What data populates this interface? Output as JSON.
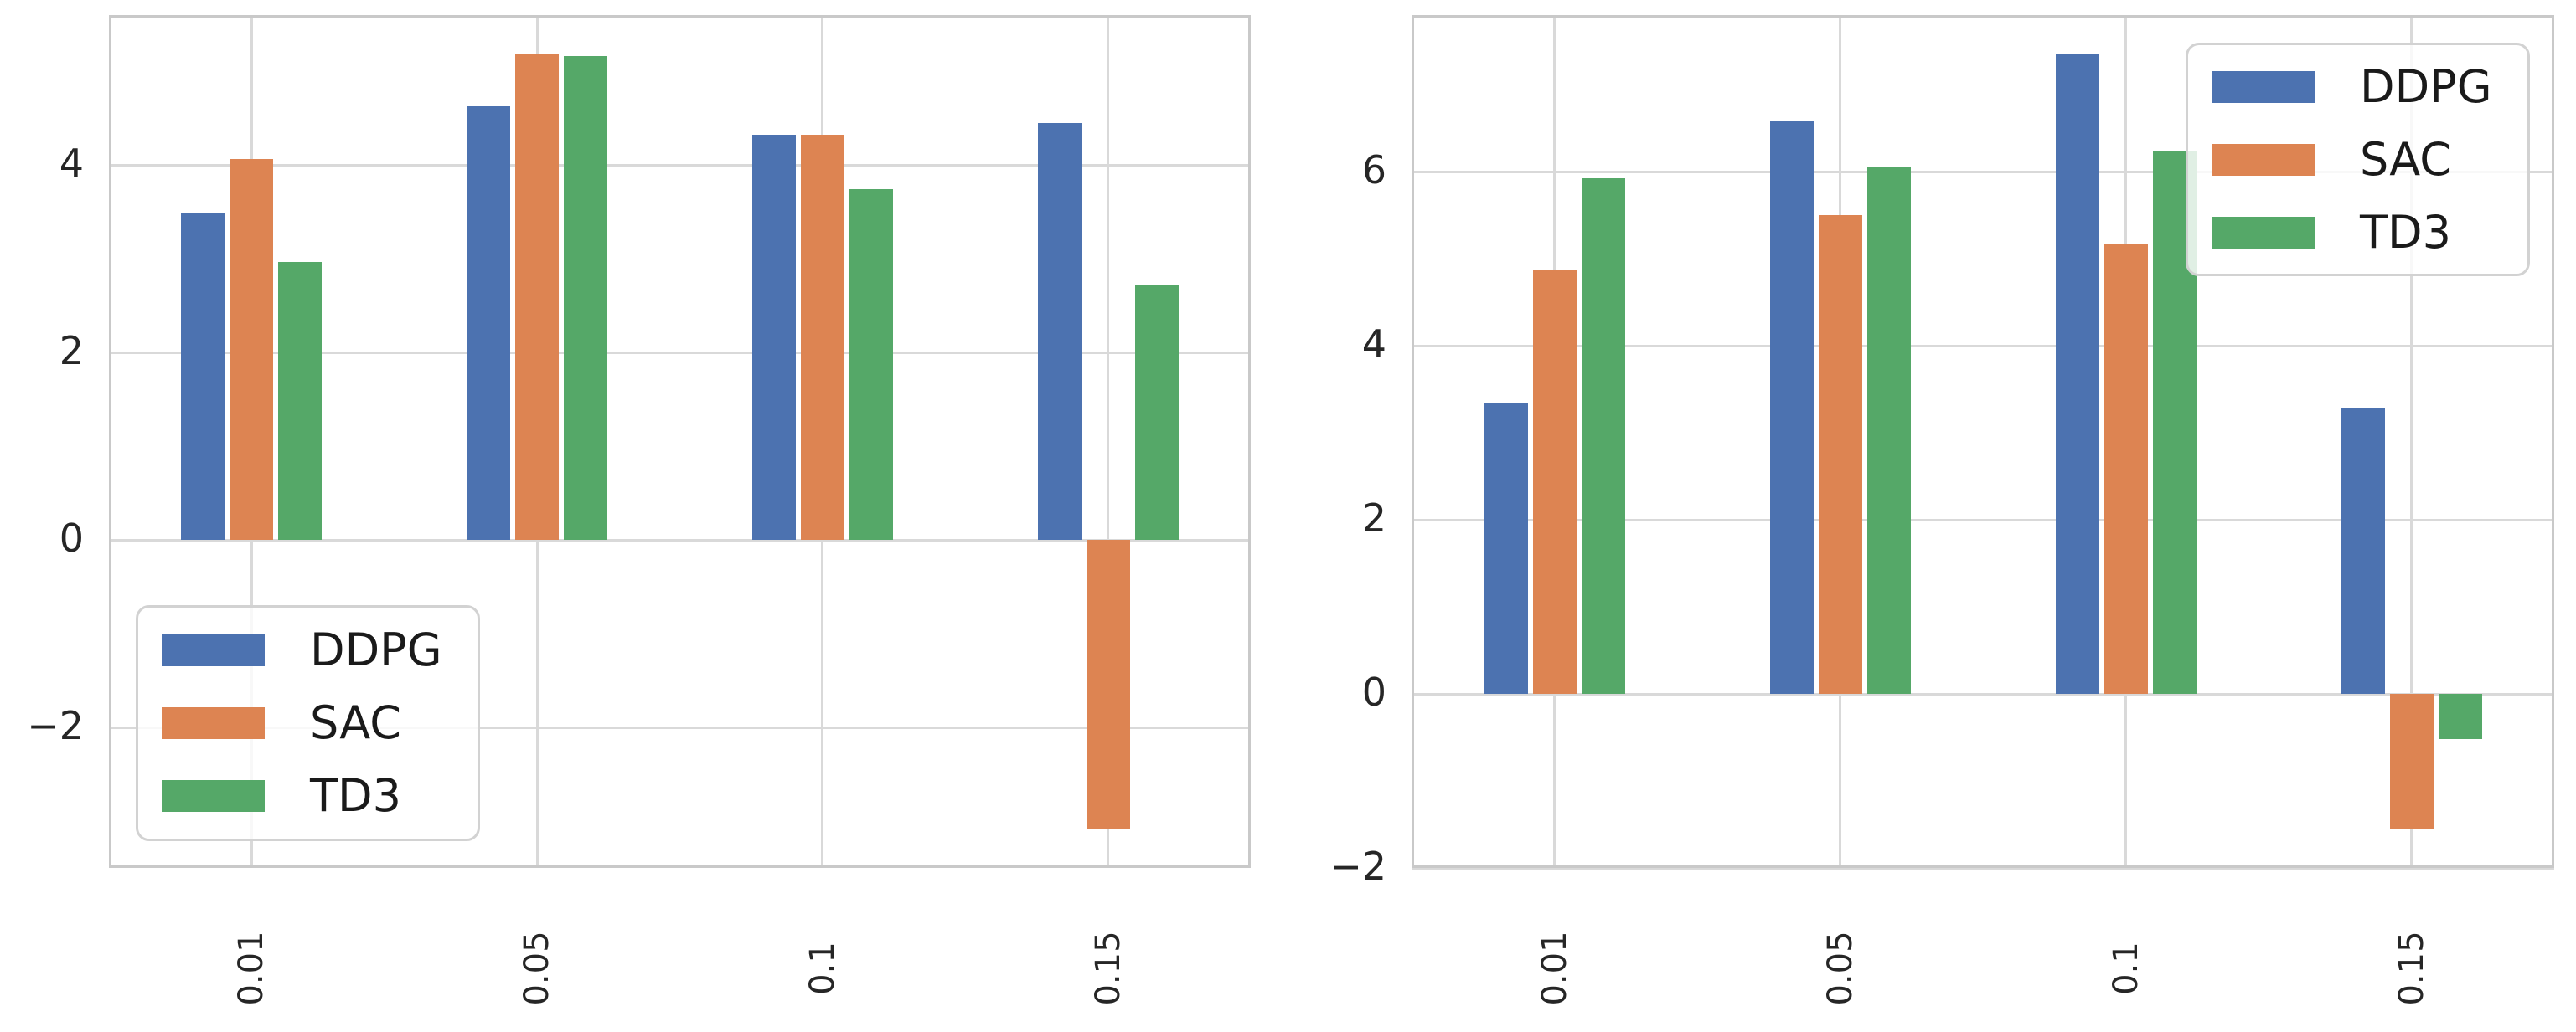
{
  "figure": {
    "background_color": "#ffffff",
    "grid_color": "#d9d9d9",
    "spine_color": "#c9c9c9",
    "tick_label_color": "#262626",
    "legend_labels": [
      "DDPG",
      "SAC",
      "TD3"
    ],
    "series_colors": {
      "DDPG": "#4C72B0",
      "SAC": "#DD8452",
      "TD3": "#55A868"
    }
  },
  "chart_data": [
    {
      "type": "bar",
      "title": "",
      "xlabel": "",
      "ylabel": "",
      "categories": [
        "0.01",
        "0.05",
        "0.1",
        "0.15"
      ],
      "series": [
        {
          "name": "DDPG",
          "color": "#4C72B0",
          "values": [
            3.48,
            4.63,
            4.32,
            4.45
          ]
        },
        {
          "name": "SAC",
          "color": "#DD8452",
          "values": [
            4.06,
            5.18,
            4.32,
            -3.08
          ]
        },
        {
          "name": "TD3",
          "color": "#55A868",
          "values": [
            2.97,
            5.16,
            3.74,
            2.72
          ]
        }
      ],
      "yticks": [
        4,
        2,
        0,
        -2
      ],
      "ylim": [
        -3.5,
        5.6
      ],
      "grid": true,
      "xtick_rotation": 90,
      "legend_position": "lower-left"
    },
    {
      "type": "bar",
      "title": "",
      "xlabel": "",
      "ylabel": "",
      "categories": [
        "0.01",
        "0.05",
        "0.1",
        "0.15"
      ],
      "series": [
        {
          "name": "DDPG",
          "color": "#4C72B0",
          "values": [
            3.35,
            6.58,
            7.35,
            3.28
          ]
        },
        {
          "name": "SAC",
          "color": "#DD8452",
          "values": [
            4.88,
            5.5,
            5.17,
            -1.55
          ]
        },
        {
          "name": "TD3",
          "color": "#55A868",
          "values": [
            5.92,
            6.06,
            6.24,
            -0.52
          ]
        }
      ],
      "yticks": [
        6,
        4,
        2,
        0,
        -2
      ],
      "ylim": [
        -2.0,
        7.8
      ],
      "grid": true,
      "xtick_rotation": 90,
      "legend_position": "upper-right"
    }
  ]
}
